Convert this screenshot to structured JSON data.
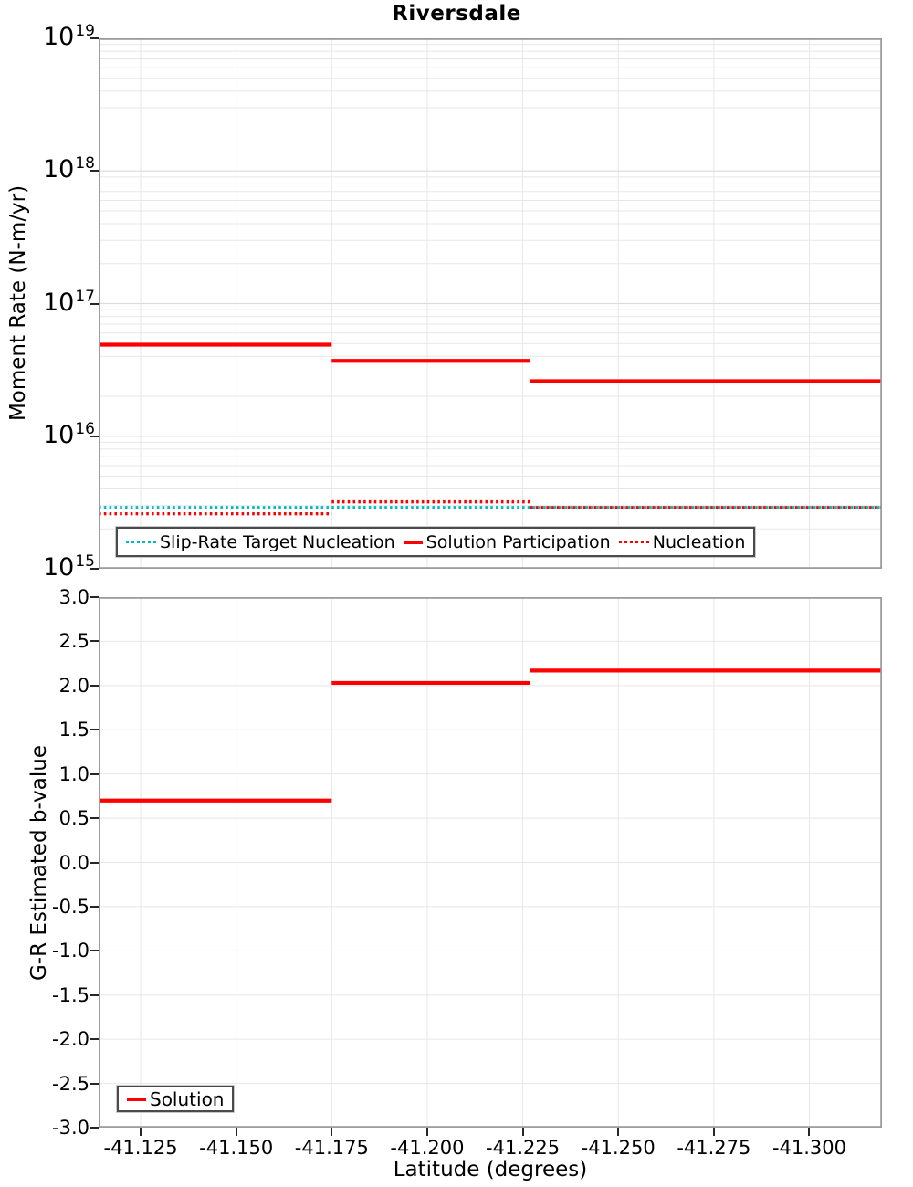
{
  "title": "Riversdale",
  "colors": {
    "solution_red": "#ff0000",
    "slip_rate_teal": "#00bcbe",
    "grid_minor": "#e7e7e7",
    "grid_major": "#dddddd",
    "panel_border": "#9c9c9c",
    "tick": "#262626"
  },
  "chart_data": [
    {
      "type": "line",
      "title": "Riversdale",
      "ylabel": "Moment Rate (N-m/yr)",
      "xlabel": "Latitude (degrees)",
      "yscale": "log",
      "ylim": [
        1000000000000000.0,
        1e+19
      ],
      "xlim": [
        -41.114,
        -41.319
      ],
      "x_inverted": true,
      "grid": true,
      "legend_position": "bottom-left-inside",
      "xticks": [
        -41.125,
        -41.15,
        -41.175,
        -41.2,
        -41.225,
        -41.25,
        -41.275,
        -41.3
      ],
      "xtick_labels": [
        "-41.125",
        "-41.150",
        "-41.175",
        "-41.200",
        "-41.225",
        "-41.250",
        "-41.275",
        "-41.300"
      ],
      "ytick_exponents": [
        "19",
        "18",
        "17",
        "16",
        "15"
      ],
      "ytick_values": [
        1e+19,
        1e+18,
        1e+17,
        1e+16,
        1000000000000000.0
      ],
      "series": [
        {
          "name": "Slip-Rate Target Nucleation",
          "style": "dotted",
          "color": "#00bcbe",
          "segments": [
            {
              "x": [
                -41.114,
                -41.319
              ],
              "y": 2900000000000000.0
            }
          ]
        },
        {
          "name": "Solution Participation",
          "style": "solid",
          "color": "#ff0000",
          "segments": [
            {
              "x": [
                -41.114,
                -41.175
              ],
              "y": 4.9e+16
            },
            {
              "x": [
                -41.175,
                -41.227
              ],
              "y": 3.7e+16
            },
            {
              "x": [
                -41.227,
                -41.319
              ],
              "y": 2.6e+16
            }
          ]
        },
        {
          "name": "Nucleation",
          "style": "dotted",
          "color": "#ff0000",
          "segments": [
            {
              "x": [
                -41.114,
                -41.175
              ],
              "y": 2600000000000000.0
            },
            {
              "x": [
                -41.175,
                -41.227
              ],
              "y": 3200000000000000.0
            },
            {
              "x": [
                -41.227,
                -41.319
              ],
              "y": 2900000000000000.0
            }
          ]
        }
      ]
    },
    {
      "type": "line",
      "ylabel": "G-R Estimated b-value",
      "xlabel": "Latitude (degrees)",
      "yscale": "linear",
      "ylim": [
        -3.0,
        3.0
      ],
      "xlim": [
        -41.114,
        -41.319
      ],
      "x_inverted": true,
      "grid": true,
      "legend_position": "bottom-left-inside",
      "xticks": [
        -41.125,
        -41.15,
        -41.175,
        -41.2,
        -41.225,
        -41.25,
        -41.275,
        -41.3
      ],
      "xtick_labels": [
        "-41.125",
        "-41.150",
        "-41.175",
        "-41.200",
        "-41.225",
        "-41.250",
        "-41.275",
        "-41.300"
      ],
      "ytick_values": [
        3.0,
        2.5,
        2.0,
        1.5,
        1.0,
        0.5,
        0.0,
        -0.5,
        -1.0,
        -1.5,
        -2.0,
        -2.5,
        -3.0
      ],
      "ytick_labels": [
        "3.0",
        "2.5",
        "2.0",
        "1.5",
        "1.0",
        "0.5",
        "0.0",
        "-0.5",
        "-1.0",
        "-1.5",
        "-2.0",
        "-2.5",
        "-3.0"
      ],
      "series": [
        {
          "name": "Solution",
          "style": "solid",
          "color": "#ff0000",
          "segments": [
            {
              "x": [
                -41.114,
                -41.175
              ],
              "y": 0.7
            },
            {
              "x": [
                -41.175,
                -41.227
              ],
              "y": 2.03
            },
            {
              "x": [
                -41.227,
                -41.319
              ],
              "y": 2.17
            }
          ]
        }
      ]
    }
  ]
}
